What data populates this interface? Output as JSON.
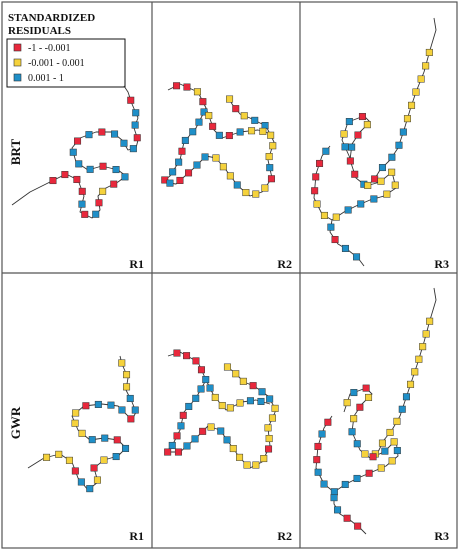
{
  "legend": {
    "title_line1": "STANDARDIZED",
    "title_line2": "RESIDUALS",
    "items": [
      {
        "label": "-1 - -0.001",
        "color": "#e8283c"
      },
      {
        "label": "-0.001 - 0.001",
        "color": "#f5d23c"
      },
      {
        "label": "0.001 - 1",
        "color": "#1f8fc8"
      }
    ]
  },
  "rows": [
    {
      "label": "BRT"
    },
    {
      "label": "GWR"
    }
  ],
  "columns": [
    {
      "label": "R1"
    },
    {
      "label": "R2"
    },
    {
      "label": "R3"
    }
  ],
  "colors": {
    "negative": "#e8283c",
    "neutral": "#f5d23c",
    "positive": "#1f8fc8",
    "line": "#333333",
    "frame": "#555555"
  }
}
